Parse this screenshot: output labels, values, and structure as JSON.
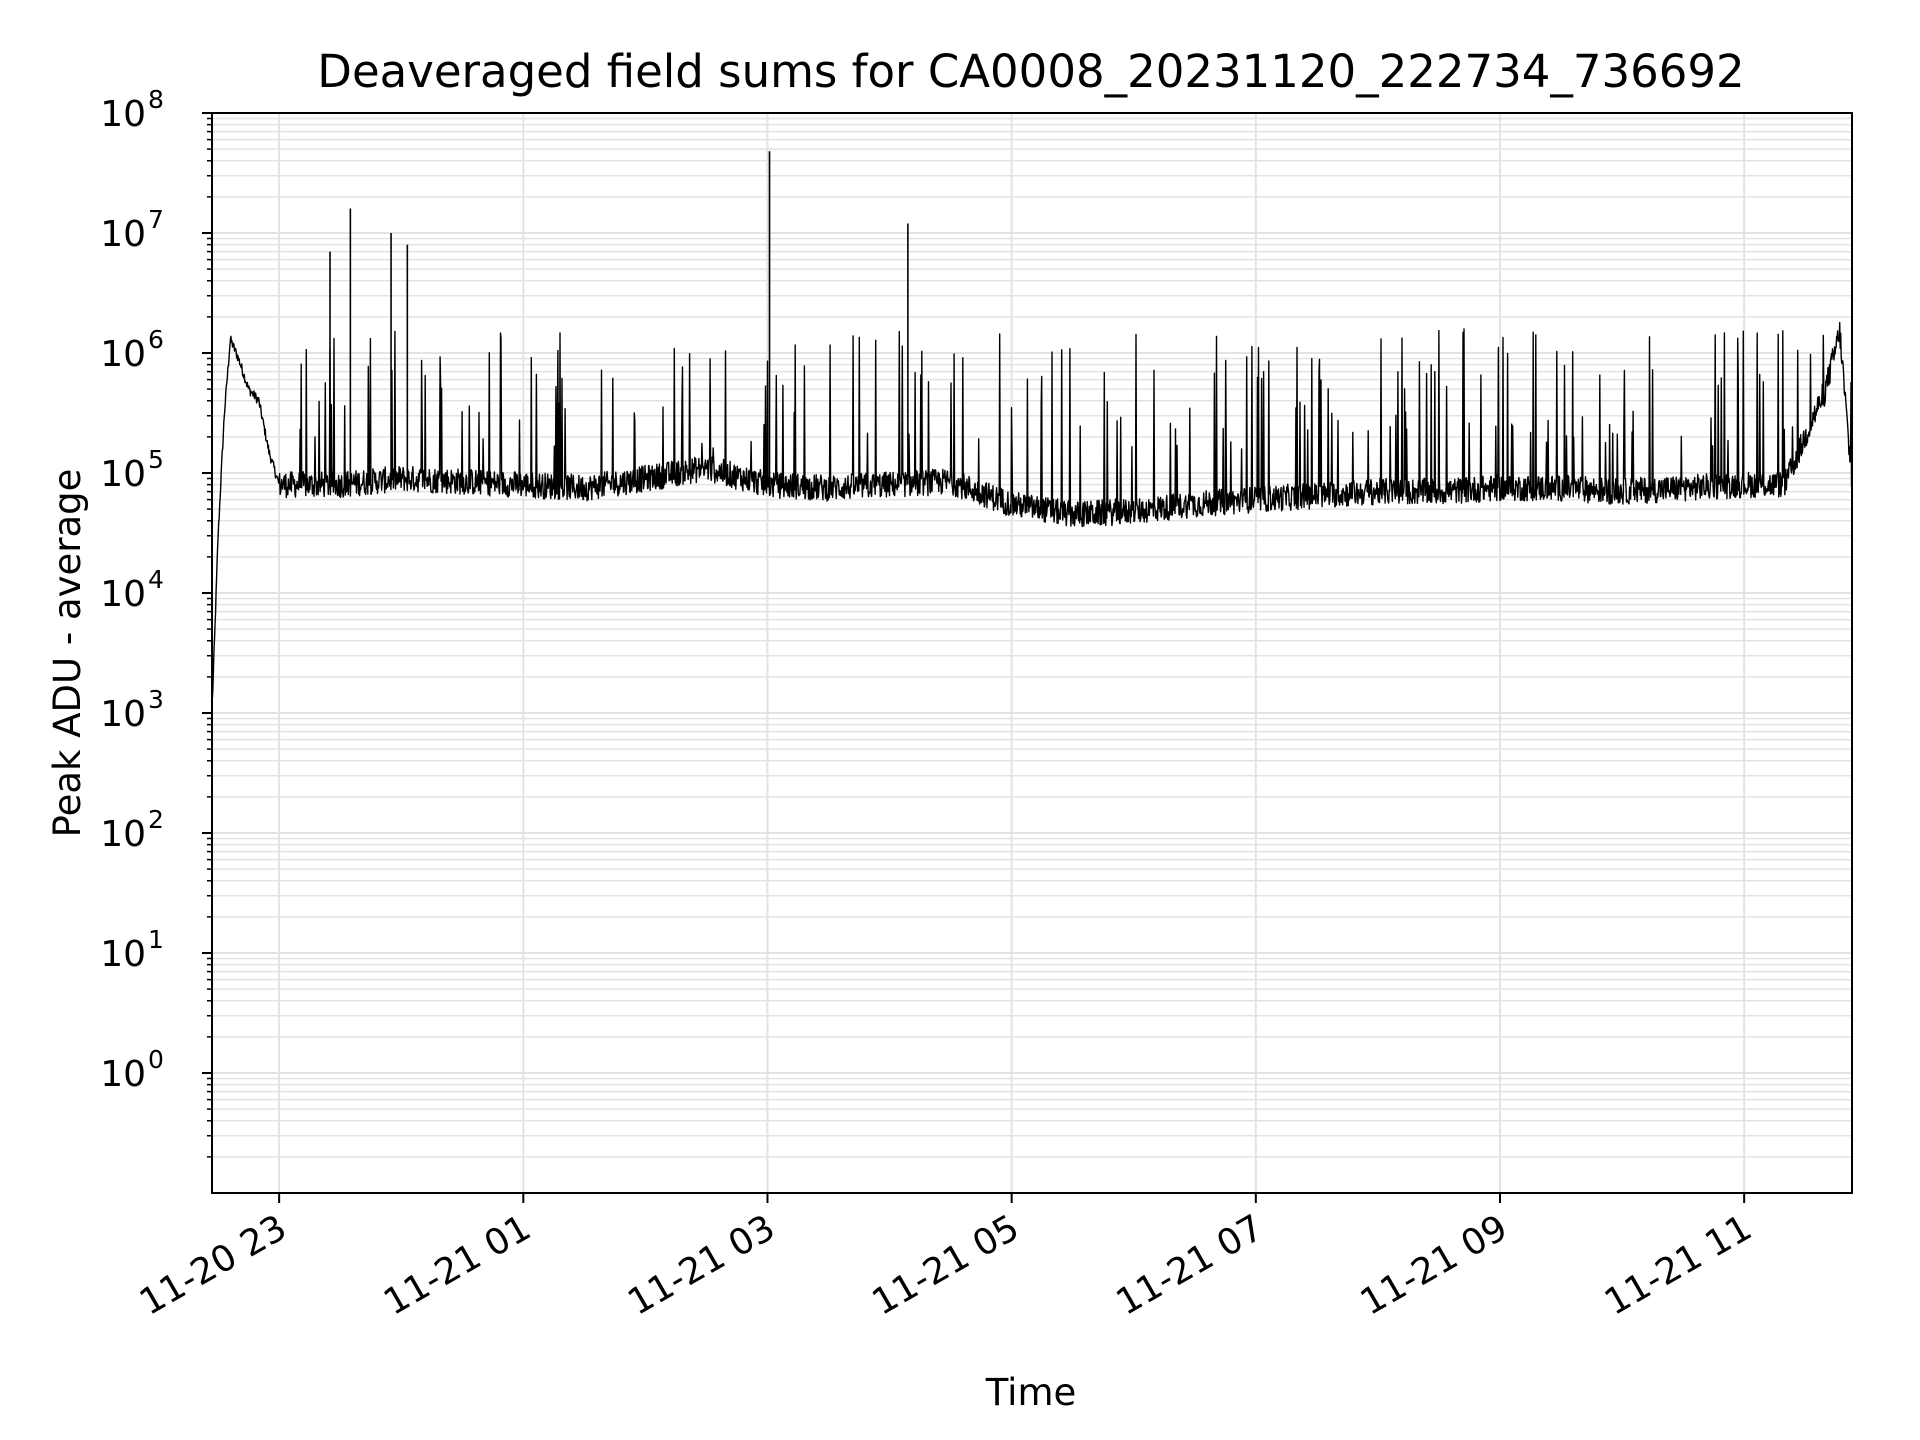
{
  "chart_data": {
    "type": "line",
    "title": "Deaveraged field sums for CA0008_20231120_222734_736692",
    "xlabel": "Time",
    "ylabel": "Peak ADU - average",
    "yscale": "log",
    "ylim": [
      0.1,
      100000000
    ],
    "xlim": [
      "2023-11-20 22:27",
      "2023-11-21 11:53"
    ],
    "grid": true,
    "series_color": "#000000",
    "grid_color": "#e3e3e3",
    "x_ticks": [
      "11-20 23",
      "11-21 01",
      "11-21 03",
      "11-21 05",
      "11-21 07",
      "11-21 09",
      "11-21 11"
    ],
    "x_tick_times": [
      "2023-11-20 23:00",
      "2023-11-21 01:00",
      "2023-11-21 03:00",
      "2023-11-21 05:00",
      "2023-11-21 07:00",
      "2023-11-21 09:00",
      "2023-11-21 11:00"
    ],
    "y_ticks": [
      {
        "base": "10",
        "exp": "0",
        "value": 1
      },
      {
        "base": "10",
        "exp": "1",
        "value": 10
      },
      {
        "base": "10",
        "exp": "2",
        "value": 100
      },
      {
        "base": "10",
        "exp": "3",
        "value": 1000
      },
      {
        "base": "10",
        "exp": "4",
        "value": 10000
      },
      {
        "base": "10",
        "exp": "5",
        "value": 100000
      },
      {
        "base": "10",
        "exp": "6",
        "value": 1000000
      },
      {
        "base": "10",
        "exp": "7",
        "value": 10000000
      },
      {
        "base": "10",
        "exp": "8",
        "value": 100000000
      }
    ],
    "series": [
      {
        "x": [
          "2023-11-20 22:27",
          "2023-11-20 22:30",
          "2023-11-20 22:33",
          "2023-11-20 22:36",
          "2023-11-20 22:40",
          "2023-11-20 22:45",
          "2023-11-20 22:50",
          "2023-11-20 22:55",
          "2023-11-20 23:00",
          "2023-11-20 23:30",
          "2023-11-21 00:00",
          "2023-11-21 00:30",
          "2023-11-21 01:00",
          "2023-11-21 01:30",
          "2023-11-21 02:00",
          "2023-11-21 02:30",
          "2023-11-21 03:00",
          "2023-11-21 03:30",
          "2023-11-21 04:00",
          "2023-11-21 04:30",
          "2023-11-21 05:00",
          "2023-11-21 05:30",
          "2023-11-21 06:00",
          "2023-11-21 06:30",
          "2023-11-21 07:00",
          "2023-11-21 07:30",
          "2023-11-21 08:00",
          "2023-11-21 08:30",
          "2023-11-21 09:00",
          "2023-11-21 09:30",
          "2023-11-21 10:00",
          "2023-11-21 10:30",
          "2023-11-21 11:00",
          "2023-11-21 11:20",
          "2023-11-21 11:30",
          "2023-11-21 11:40",
          "2023-11-21 11:47",
          "2023-11-21 11:53"
        ],
        "y": [
          1000,
          30000,
          300000,
          1300000,
          900000,
          500000,
          400000,
          150000,
          80000,
          80000,
          90000,
          85000,
          80000,
          75000,
          90000,
          110000,
          80000,
          75000,
          80000,
          85000,
          55000,
          45000,
          48000,
          55000,
          60000,
          65000,
          70000,
          70000,
          75000,
          75000,
          70000,
          75000,
          80000,
          80000,
          200000,
          500000,
          1500000,
          80000
        ]
      }
    ],
    "spikes": [
      {
        "x": "2023-11-20 23:35",
        "y": 16000000
      },
      {
        "x": "2023-11-20 23:25",
        "y": 7000000
      },
      {
        "x": "2023-11-20 23:55",
        "y": 10000000
      },
      {
        "x": "2023-11-21 00:03",
        "y": 8000000
      },
      {
        "x": "2023-11-21 03:01",
        "y": 48000000
      },
      {
        "x": "2023-11-21 04:09",
        "y": 12000000
      }
    ]
  }
}
